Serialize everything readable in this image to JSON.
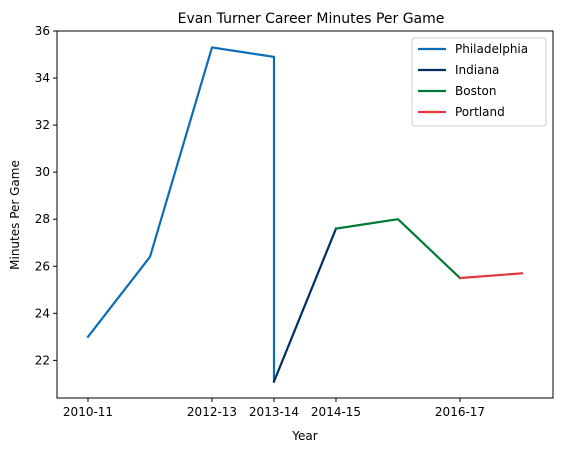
{
  "chart_data": {
    "type": "line",
    "title": "Evan Turner Career Minutes Per Game",
    "xlabel": "Year",
    "ylabel": "Minutes Per Game",
    "x_tick_labels": [
      "2010-11",
      "2012-13",
      "2013-14",
      "2014-15",
      "2016-17"
    ],
    "ylim": [
      20.4,
      36
    ],
    "y_ticks": [
      22,
      24,
      26,
      28,
      30,
      32,
      34,
      36
    ],
    "grid": false,
    "legend_position": "top-right",
    "series": [
      {
        "name": "Philadelphia",
        "color": "#0b6db7",
        "points": [
          {
            "x": "2010-11",
            "y": 23.0
          },
          {
            "x": "2011-12",
            "y": 26.4
          },
          {
            "x": "2012-13",
            "y": 35.3
          },
          {
            "x": "2013-14",
            "y": 34.9
          },
          {
            "x": "2013-14",
            "y": 21.1
          }
        ]
      },
      {
        "name": "Indiana",
        "color": "#002d62",
        "points": [
          {
            "x": "2013-14",
            "y": 21.1
          },
          {
            "x": "2014-15",
            "y": 27.6
          }
        ]
      },
      {
        "name": "Boston",
        "color": "#007a33",
        "points": [
          {
            "x": "2014-15",
            "y": 27.6
          },
          {
            "x": "2015-16",
            "y": 28.0
          },
          {
            "x": "2016-17",
            "y": 25.5
          }
        ]
      },
      {
        "name": "Portland",
        "color": "#e03a3e",
        "points": [
          {
            "x": "2016-17",
            "y": 25.5
          },
          {
            "x": "2017-18",
            "y": 25.7
          }
        ]
      }
    ]
  }
}
